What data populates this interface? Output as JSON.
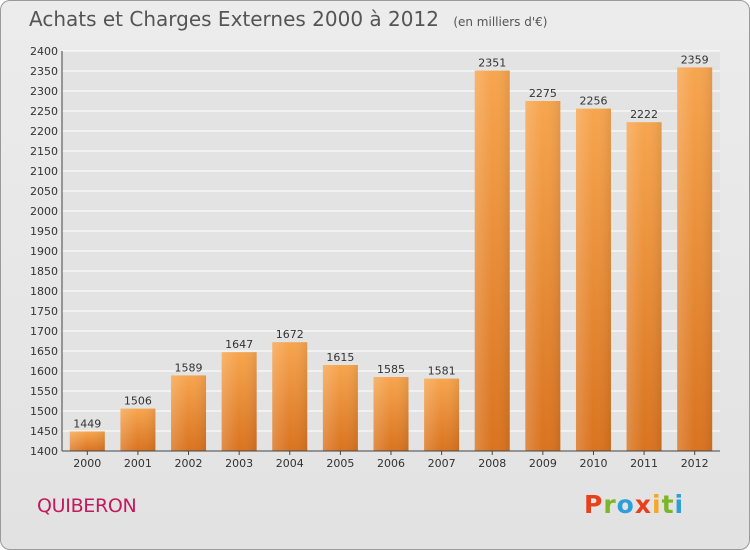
{
  "chart_data": {
    "type": "bar",
    "title": "Achats et Charges Externes 2000 à 2012",
    "subtitle": "(en milliers d'€)",
    "categories": [
      "2000",
      "2001",
      "2002",
      "2003",
      "2004",
      "2005",
      "2006",
      "2007",
      "2008",
      "2009",
      "2010",
      "2011",
      "2012"
    ],
    "values": [
      1449,
      1506,
      1589,
      1647,
      1672,
      1615,
      1585,
      1581,
      2351,
      2275,
      2256,
      2222,
      2359
    ],
    "ylim": [
      1400,
      2400
    ],
    "ytick_step": 50,
    "grid": true,
    "bar_color": "#f39c3c"
  },
  "footer": {
    "city": "QUIBERON",
    "brand": "Proxiti",
    "brand_colors": [
      "#e8401c",
      "#7cb628",
      "#2c9fd8",
      "#e8401c",
      "#f5a623",
      "#7cb628",
      "#2c9fd8"
    ]
  }
}
